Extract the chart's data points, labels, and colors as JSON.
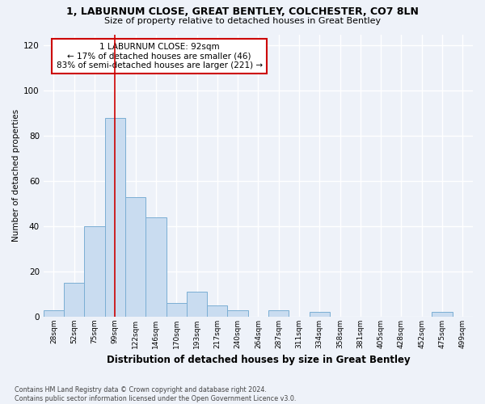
{
  "title1": "1, LABURNUM CLOSE, GREAT BENTLEY, COLCHESTER, CO7 8LN",
  "title2": "Size of property relative to detached houses in Great Bentley",
  "xlabel": "Distribution of detached houses by size in Great Bentley",
  "ylabel": "Number of detached properties",
  "categories": [
    "28sqm",
    "52sqm",
    "75sqm",
    "99sqm",
    "122sqm",
    "146sqm",
    "170sqm",
    "193sqm",
    "217sqm",
    "240sqm",
    "264sqm",
    "287sqm",
    "311sqm",
    "334sqm",
    "358sqm",
    "381sqm",
    "405sqm",
    "428sqm",
    "452sqm",
    "475sqm",
    "499sqm"
  ],
  "values": [
    3,
    15,
    40,
    88,
    53,
    44,
    6,
    11,
    5,
    3,
    0,
    3,
    0,
    2,
    0,
    0,
    0,
    0,
    0,
    2,
    0
  ],
  "bar_color": "#c9dcf0",
  "bar_edge_color": "#7baed4",
  "vline_x": 2.98,
  "vline_color": "#cc0000",
  "annotation_text": "1 LABURNUM CLOSE: 92sqm\n← 17% of detached houses are smaller (46)\n83% of semi-detached houses are larger (221) →",
  "annotation_box_color": "#ffffff",
  "annotation_box_edge_color": "#cc0000",
  "ylim": [
    0,
    125
  ],
  "yticks": [
    0,
    20,
    40,
    60,
    80,
    100,
    120
  ],
  "background_color": "#eef2f9",
  "grid_color": "#ffffff",
  "footnote": "Contains HM Land Registry data © Crown copyright and database right 2024.\nContains public sector information licensed under the Open Government Licence v3.0."
}
